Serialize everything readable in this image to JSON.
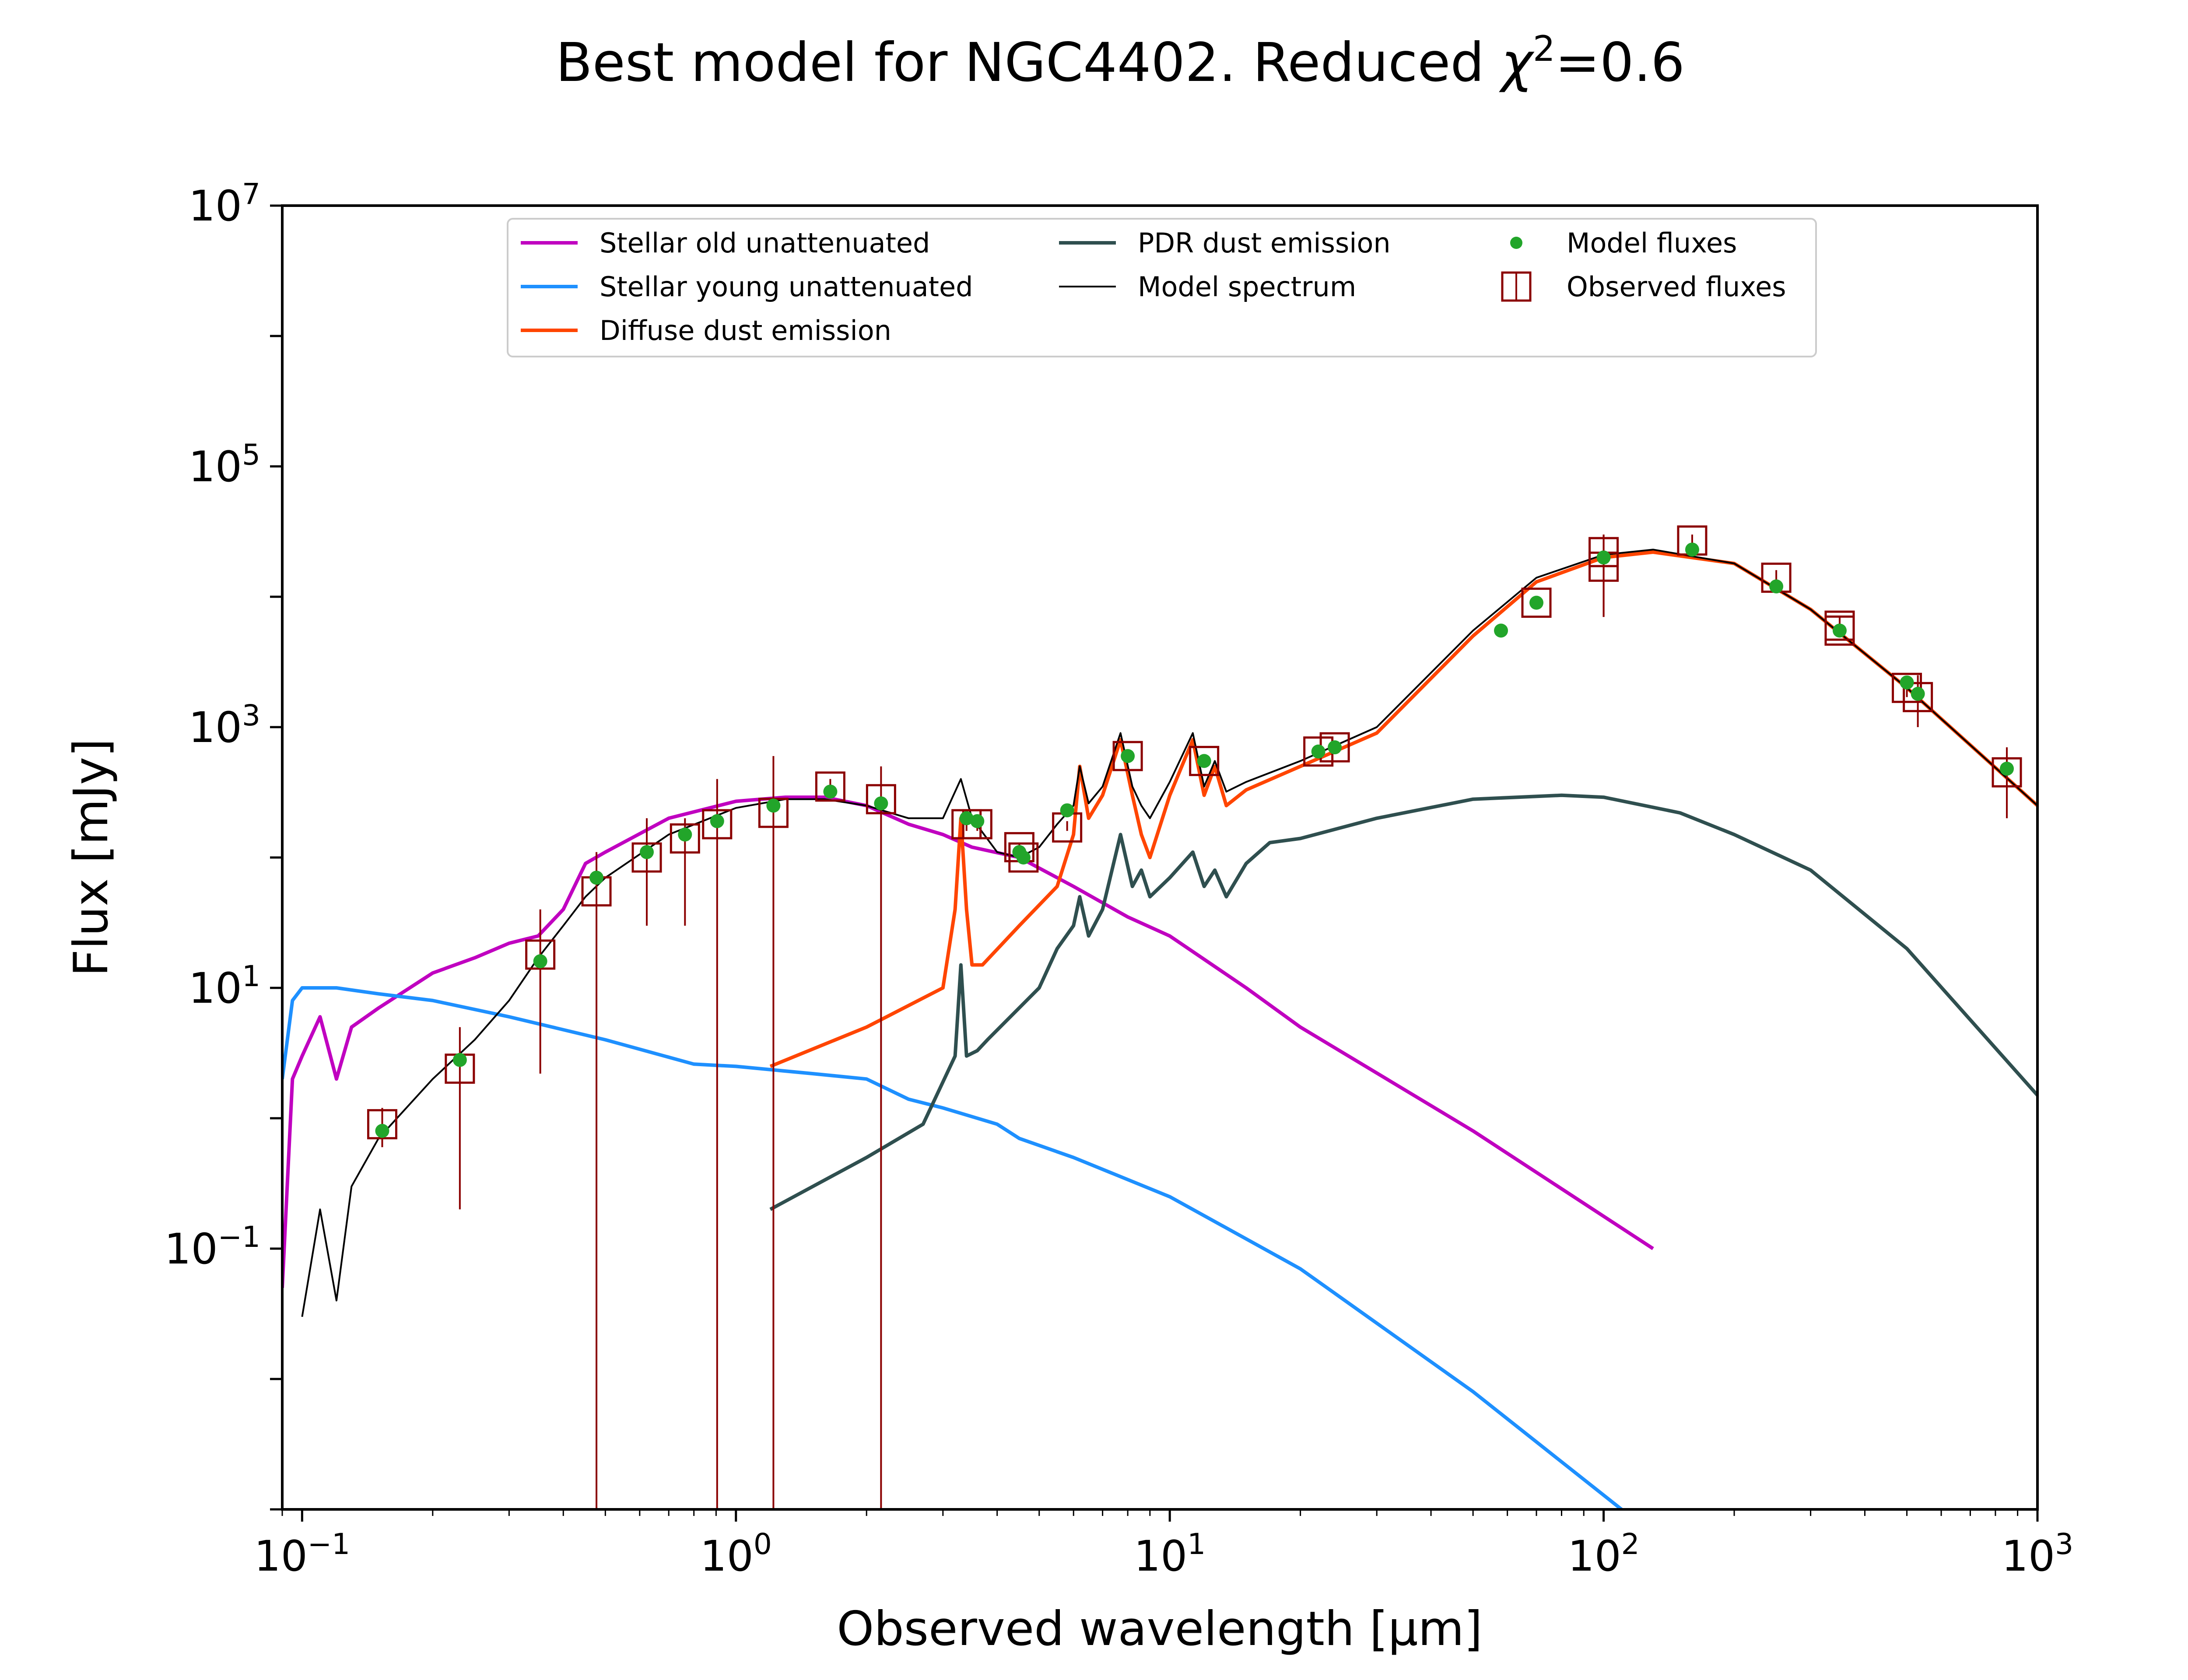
{
  "chart_data": {
    "type": "line",
    "title_prefix": "Best model for NGC4402. Reduced ",
    "title_chi": "χ",
    "title_sup": "2",
    "title_suffix": "=0.6",
    "xlabel": "Observed wavelength [μm]",
    "ylabel": "Flux [mJy]",
    "xscale": "log",
    "yscale": "log",
    "xlim": [
      0.09,
      1000
    ],
    "ylim": [
      0.001,
      10000000
    ],
    "x_ticks": [
      {
        "base": "10",
        "exp": "−1",
        "value": 0.1
      },
      {
        "base": "10",
        "exp": "0",
        "value": 1
      },
      {
        "base": "10",
        "exp": "1",
        "value": 10
      },
      {
        "base": "10",
        "exp": "2",
        "value": 100
      },
      {
        "base": "10",
        "exp": "3",
        "value": 1000
      }
    ],
    "y_ticks": [
      {
        "base": "10",
        "exp": "−1",
        "value": 0.1
      },
      {
        "base": "10",
        "exp": "1",
        "value": 10
      },
      {
        "base": "10",
        "exp": "3",
        "value": 1000
      },
      {
        "base": "10",
        "exp": "5",
        "value": 100000
      },
      {
        "base": "10",
        "exp": "7",
        "value": 10000000
      }
    ],
    "legend_position": "upper center",
    "legend": [
      {
        "label": "Stellar old unattenuated",
        "kind": "line",
        "color": "#c000c0"
      },
      {
        "label": "Stellar young unattenuated",
        "kind": "line",
        "color": "#1e90ff"
      },
      {
        "label": "Diffuse dust emission",
        "kind": "line",
        "color": "#ff4500"
      },
      {
        "label": "PDR dust emission",
        "kind": "line",
        "color": "#2f4f4f"
      },
      {
        "label": "Model spectrum",
        "kind": "thin",
        "color": "#000000"
      },
      {
        "label": "Model fluxes",
        "kind": "dot",
        "color": "#22a52a"
      },
      {
        "label": "Observed fluxes",
        "kind": "box",
        "color": "#8b0000"
      }
    ],
    "series": [
      {
        "name": "Stellar old unattenuated",
        "color": "#c000c0",
        "x": [
          0.09,
          0.095,
          0.1,
          0.11,
          0.12,
          0.13,
          0.15,
          0.2,
          0.25,
          0.3,
          0.35,
          0.4,
          0.45,
          0.5,
          0.7,
          1.0,
          1.3,
          1.6,
          2.0,
          2.5,
          3.0,
          3.5,
          4.5,
          6.0,
          8.0,
          10.0,
          15.0,
          20.0,
          50.0,
          130.0
        ],
        "y": [
          0.05,
          2,
          3,
          6,
          2,
          5,
          7,
          13,
          17,
          22,
          25,
          40,
          90,
          110,
          200,
          270,
          290,
          290,
          250,
          180,
          150,
          120,
          100,
          60,
          35,
          25,
          10,
          5,
          0.8,
          0.1
        ]
      },
      {
        "name": "Stellar young unattenuated",
        "color": "#1e90ff",
        "x": [
          0.09,
          0.095,
          0.1,
          0.12,
          0.15,
          0.2,
          0.3,
          0.5,
          0.8,
          1.0,
          1.5,
          2.0,
          2.5,
          3.0,
          4.0,
          4.5,
          6.0,
          10.0,
          20.0,
          50.0,
          110.0
        ],
        "y": [
          2,
          8,
          10,
          10,
          9,
          8,
          6,
          4,
          2.6,
          2.5,
          2.2,
          2.0,
          1.4,
          1.2,
          0.9,
          0.7,
          0.5,
          0.25,
          0.07,
          0.008,
          0.001
        ]
      },
      {
        "name": "Diffuse dust emission",
        "color": "#ff4500",
        "x": [
          1.2,
          2.0,
          3.0,
          3.2,
          3.3,
          3.4,
          3.5,
          3.7,
          4.5,
          5.5,
          6.0,
          6.2,
          6.5,
          7.0,
          7.7,
          8.2,
          8.6,
          9.0,
          10.0,
          11.3,
          12.0,
          12.7,
          13.5,
          15.0,
          20.0,
          30.0,
          50.0,
          70.0,
          100.0,
          130.0,
          200.0,
          300.0,
          500.0,
          1000.0
        ],
        "y": [
          2.5,
          5,
          10,
          40,
          200,
          40,
          15,
          15,
          30,
          60,
          150,
          500,
          200,
          300,
          800,
          300,
          150,
          100,
          300,
          800,
          300,
          500,
          250,
          330,
          500,
          900,
          5000,
          13000,
          20000,
          22000,
          18000,
          8000,
          2000,
          250
        ]
      },
      {
        "name": "PDR dust emission",
        "color": "#2f4f4f",
        "x": [
          1.2,
          2.0,
          2.7,
          3.2,
          3.3,
          3.4,
          3.6,
          3.8,
          5.0,
          5.5,
          6.0,
          6.2,
          6.5,
          7.0,
          7.7,
          8.2,
          8.6,
          9.0,
          10.0,
          11.3,
          12.0,
          12.7,
          13.5,
          15.0,
          17.0,
          20.0,
          30.0,
          50.0,
          80.0,
          100.0,
          150.0,
          200.0,
          300.0,
          500.0,
          1000.0
        ],
        "y": [
          0.2,
          0.5,
          0.9,
          3,
          15,
          3,
          3.3,
          4,
          10,
          20,
          30,
          50,
          25,
          40,
          150,
          60,
          80,
          50,
          70,
          110,
          60,
          80,
          50,
          90,
          130,
          140,
          200,
          280,
          300,
          290,
          220,
          150,
          80,
          20,
          1.5
        ]
      },
      {
        "name": "Model spectrum",
        "color": "#000000",
        "x": [
          0.1,
          0.11,
          0.12,
          0.13,
          0.15,
          0.2,
          0.25,
          0.3,
          0.35,
          0.4,
          0.45,
          0.5,
          0.7,
          1.0,
          1.3,
          1.6,
          2.0,
          2.5,
          3.0,
          3.3,
          3.5,
          4.0,
          4.5,
          5.0,
          5.5,
          6.0,
          6.2,
          6.5,
          7.0,
          7.7,
          8.2,
          8.6,
          9.0,
          10.0,
          11.3,
          12.0,
          12.7,
          13.5,
          15.0,
          20.0,
          30.0,
          50.0,
          70.0,
          100.0,
          130.0,
          200.0,
          300.0,
          500.0,
          1000.0
        ],
        "y": [
          0.03,
          0.2,
          0.04,
          0.3,
          0.7,
          2,
          4,
          8,
          17,
          30,
          50,
          70,
          150,
          240,
          280,
          280,
          250,
          200,
          200,
          400,
          200,
          110,
          100,
          120,
          180,
          250,
          500,
          260,
          350,
          900,
          350,
          250,
          200,
          380,
          900,
          350,
          550,
          320,
          380,
          550,
          1000,
          5500,
          14000,
          21000,
          23000,
          18000,
          8000,
          2000,
          250
        ]
      }
    ],
    "model_fluxes": {
      "color": "#22a52a",
      "x": [
        0.153,
        0.231,
        0.354,
        0.477,
        0.623,
        0.763,
        0.905,
        1.22,
        1.65,
        2.16,
        3.4,
        3.6,
        4.5,
        4.6,
        5.8,
        8.0,
        12.0,
        22.0,
        24.0,
        58.0,
        70.0,
        100.0,
        160.0,
        250.0,
        350.0,
        500.0,
        530.0,
        850.0
      ],
      "y": [
        0.8,
        2.8,
        16,
        70,
        110,
        150,
        190,
        250,
        320,
        260,
        200,
        190,
        110,
        100,
        230,
        600,
        550,
        650,
        700,
        5500,
        9000,
        20000,
        23000,
        12000,
        5500,
        2200,
        1800,
        480
      ]
    },
    "observed_fluxes": {
      "color": "#8b0000",
      "x": [
        0.153,
        0.231,
        0.354,
        0.477,
        0.623,
        0.763,
        0.905,
        1.22,
        1.65,
        2.16,
        3.4,
        3.6,
        4.5,
        4.6,
        5.8,
        8.0,
        12.0,
        22.0,
        24.0,
        70.0,
        100.0,
        100.0,
        160.0,
        250.0,
        350.0,
        350.0,
        500.0,
        530.0,
        850.0
      ],
      "y": [
        0.9,
        2.4,
        18,
        55,
        100,
        140,
        180,
        220,
        350,
        280,
        180,
        180,
        120,
        100,
        170,
        600,
        550,
        650,
        700,
        9000,
        22000,
        17000,
        27000,
        14000,
        6000,
        5500,
        2000,
        1700,
        450
      ],
      "err_low": [
        0.6,
        0.2,
        2.2,
        0.001,
        30,
        30,
        0.001,
        0.001,
        300,
        0.001,
        160,
        160,
        110,
        90,
        160,
        550,
        500,
        600,
        650,
        8000,
        7000,
        7000,
        23000,
        12000,
        5000,
        5000,
        1700,
        1000,
        200
      ],
      "err_high": [
        1.2,
        5,
        40,
        110,
        200,
        200,
        400,
        600,
        400,
        500,
        200,
        200,
        130,
        110,
        190,
        650,
        600,
        700,
        750,
        10000,
        30000,
        30000,
        30000,
        16000,
        7000,
        7000,
        2300,
        2500,
        700
      ]
    }
  }
}
